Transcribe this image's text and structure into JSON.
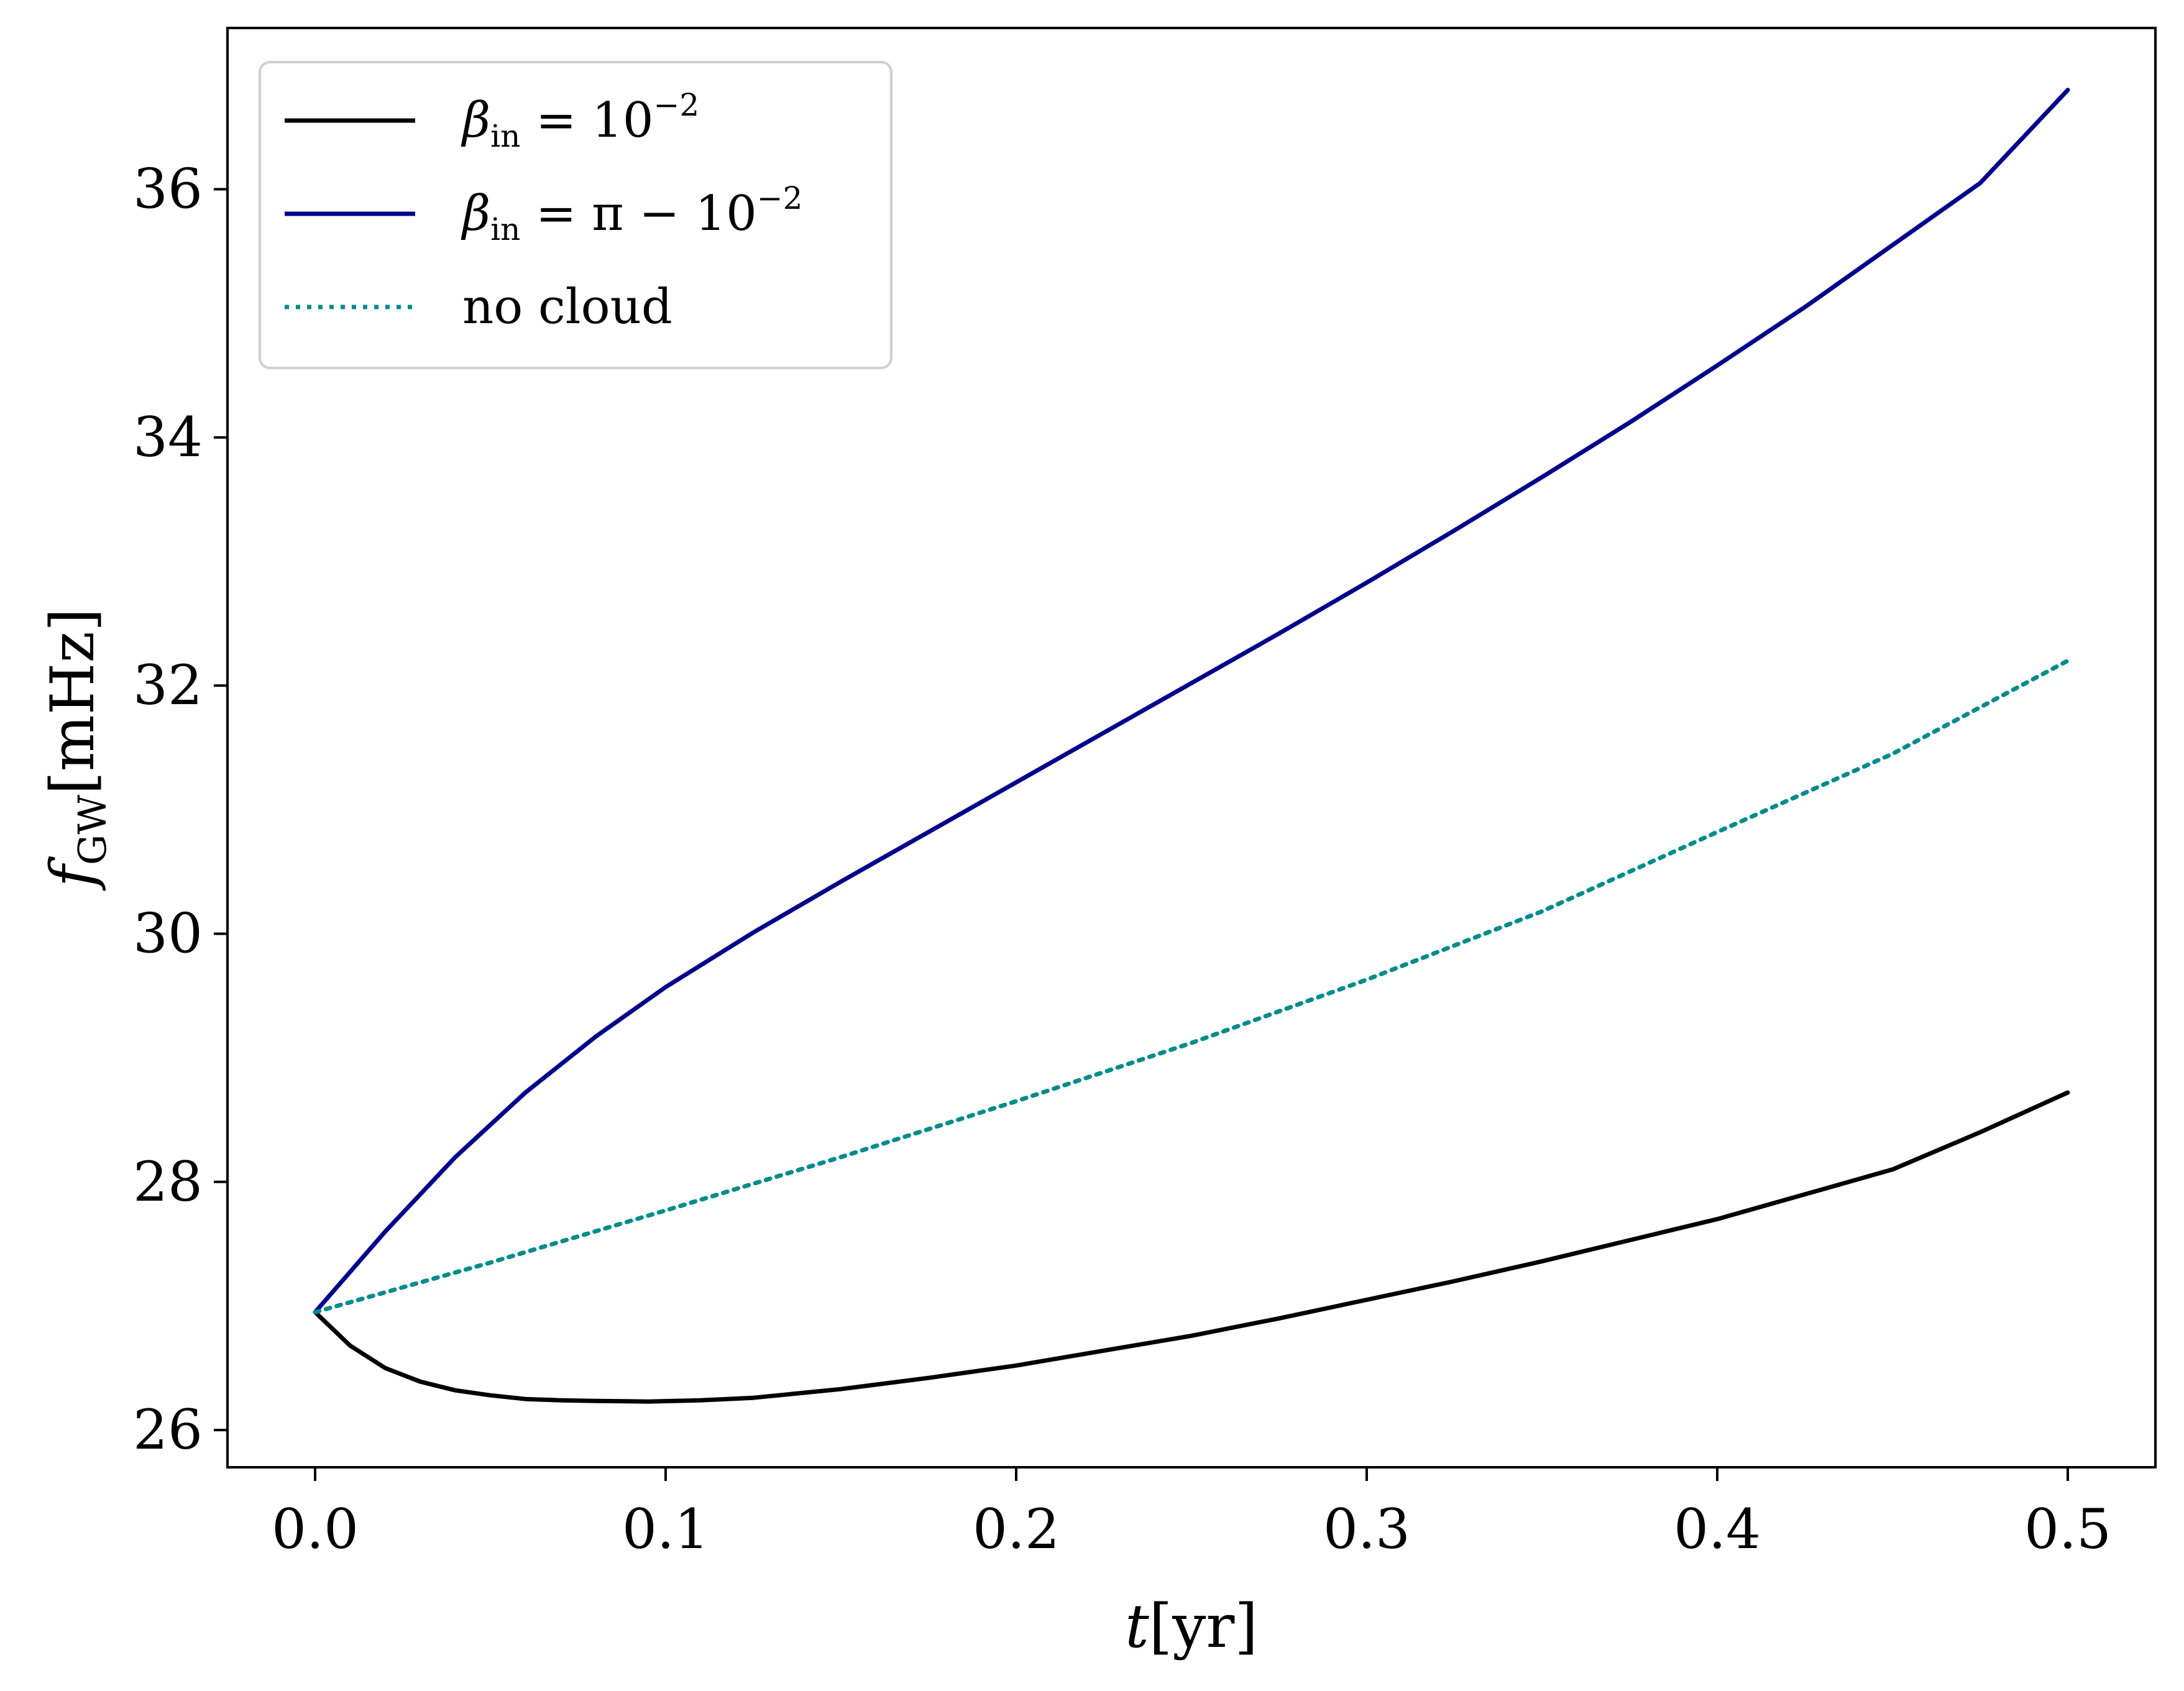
{
  "chart_data": {
    "type": "line",
    "title": "",
    "xlabel": {
      "main": "t",
      "unit": "[yr]"
    },
    "ylabel": {
      "main": "f",
      "sub": "GW",
      "unit": "[mHz]"
    },
    "xlim": [
      -0.025,
      0.525
    ],
    "ylim": [
      25.7,
      37.3
    ],
    "xticks": [
      0.0,
      0.1,
      0.2,
      0.3,
      0.4,
      0.5
    ],
    "xtick_labels": [
      "0.0",
      "0.1",
      "0.2",
      "0.3",
      "0.4",
      "0.5"
    ],
    "yticks": [
      26,
      28,
      30,
      32,
      34,
      36
    ],
    "ytick_labels": [
      "26",
      "28",
      "30",
      "32",
      "34",
      "36"
    ],
    "grid": false,
    "legend_position": "top-left",
    "series": [
      {
        "legend": {
          "symbol": "β",
          "sub": "in",
          "rest": " = 10",
          "sup": "−2"
        },
        "color": "#000000",
        "style": "solid",
        "x": [
          0.0,
          0.01,
          0.02,
          0.03,
          0.04,
          0.05,
          0.06,
          0.07,
          0.08,
          0.095,
          0.11,
          0.125,
          0.15,
          0.175,
          0.2,
          0.225,
          0.25,
          0.275,
          0.3,
          0.325,
          0.35,
          0.375,
          0.4,
          0.425,
          0.45,
          0.475,
          0.5
        ],
        "y": [
          26.95,
          26.68,
          26.5,
          26.39,
          26.32,
          26.28,
          26.25,
          26.24,
          26.235,
          26.23,
          26.24,
          26.26,
          26.33,
          26.42,
          26.52,
          26.64,
          26.76,
          26.9,
          27.05,
          27.2,
          27.36,
          27.53,
          27.7,
          27.9,
          28.1,
          28.4,
          28.72
        ]
      },
      {
        "legend": {
          "symbol": "β",
          "sub": "in",
          "rest": " = π − 10",
          "sup": "−2"
        },
        "color": "#00008B",
        "style": "solid",
        "x": [
          0.0,
          0.02,
          0.04,
          0.06,
          0.08,
          0.1,
          0.125,
          0.15,
          0.175,
          0.2,
          0.225,
          0.25,
          0.275,
          0.3,
          0.325,
          0.35,
          0.375,
          0.4,
          0.425,
          0.45,
          0.475,
          0.5
        ],
        "y": [
          26.95,
          27.6,
          28.2,
          28.72,
          29.17,
          29.57,
          30.01,
          30.42,
          30.82,
          31.22,
          31.62,
          32.02,
          32.42,
          32.83,
          33.25,
          33.68,
          34.12,
          34.58,
          35.05,
          35.55,
          36.05,
          36.8
        ]
      },
      {
        "legend": {
          "symbol": "",
          "sub": "",
          "rest": "no cloud",
          "sup": ""
        },
        "color": "#008B8B",
        "style": "dotted",
        "x": [
          0.0,
          0.05,
          0.1,
          0.15,
          0.2,
          0.25,
          0.3,
          0.35,
          0.4,
          0.45,
          0.5
        ],
        "y": [
          26.95,
          27.35,
          27.77,
          28.2,
          28.65,
          29.12,
          29.63,
          30.18,
          30.82,
          31.45,
          32.2
        ]
      }
    ]
  }
}
